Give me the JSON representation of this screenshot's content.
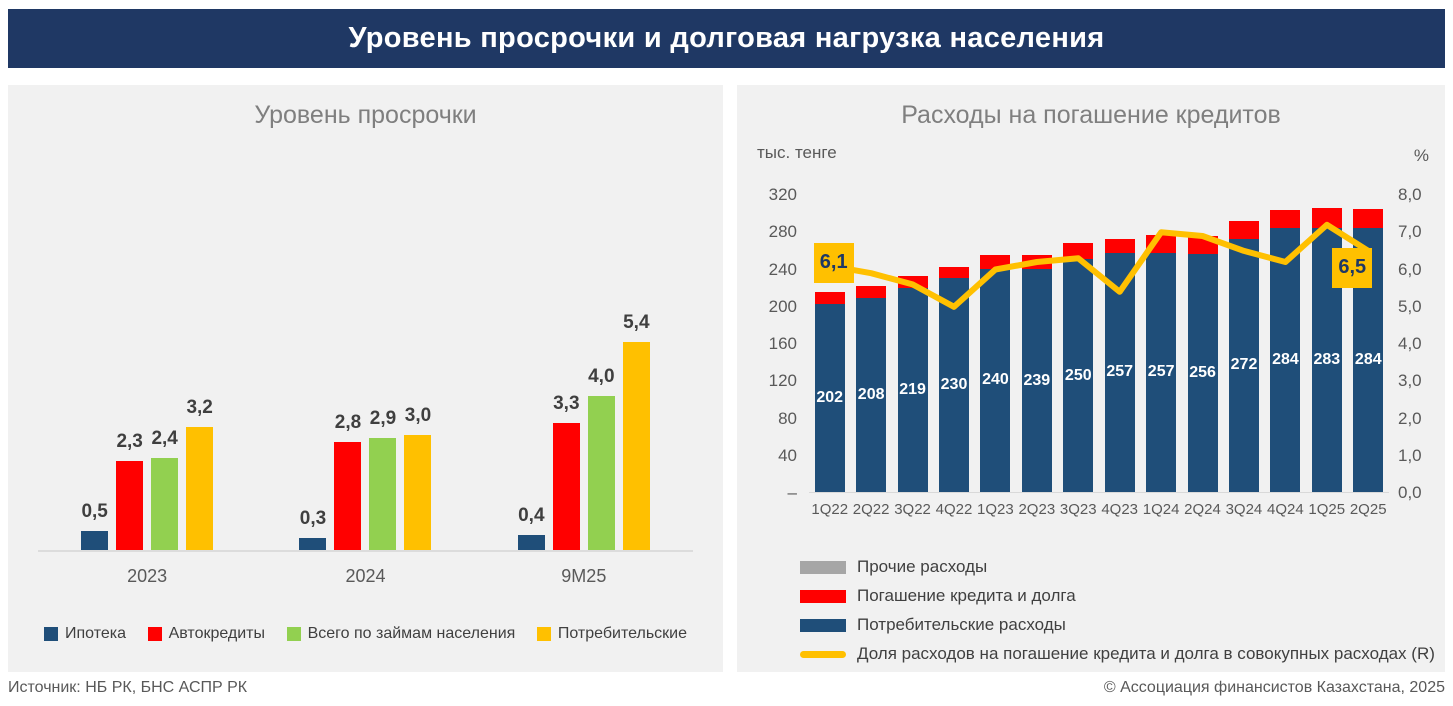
{
  "header": {
    "title": "Уровень просрочки и долговая нагрузка населения"
  },
  "footer": {
    "source": "Источник: НБ РК, БНС АСПР РК",
    "copyright": "© Ассоциация финансистов Казахстана, 2025"
  },
  "colors": {
    "header_bg": "#1F3864",
    "panel_bg": "#F1F1F1",
    "navy_bar": "#1F4E79",
    "red": "#FF0000",
    "green": "#92D050",
    "gold": "#FFC000",
    "gray": "#A6A6A6"
  },
  "chart_data": [
    {
      "type": "bar",
      "title": "Уровень просрочки",
      "categories": [
        "2023",
        "2024",
        "9М25"
      ],
      "series": [
        {
          "name": "Ипотека",
          "color": "#1F4E79",
          "values": [
            0.5,
            0.3,
            0.4
          ]
        },
        {
          "name": "Автокредиты",
          "color": "#FF0000",
          "values": [
            2.3,
            2.8,
            3.3
          ]
        },
        {
          "name": "Всего по займам населения",
          "color": "#92D050",
          "values": [
            2.4,
            2.9,
            4.0
          ]
        },
        {
          "name": "Потребительские",
          "color": "#FFC000",
          "values": [
            3.2,
            3.0,
            5.4
          ]
        }
      ],
      "ylim": [
        0,
        5.4
      ],
      "grid": false,
      "value_axis_visible": false,
      "data_labels": "above bars, comma decimal",
      "legend_position": "bottom"
    },
    {
      "type": "bar-stacked-with-line",
      "title": "Расходы на погашение кредитов",
      "left_axis_unit": "тыс. тенге",
      "right_axis_unit": "%",
      "categories": [
        "1Q22",
        "2Q22",
        "3Q22",
        "4Q22",
        "1Q23",
        "2Q23",
        "3Q23",
        "4Q23",
        "1Q24",
        "2Q24",
        "3Q24",
        "4Q24",
        "1Q25",
        "2Q25"
      ],
      "series": [
        {
          "name": "Потребительские расходы",
          "color": "#1F4E79",
          "values": [
            202,
            208,
            219,
            230,
            240,
            239,
            250,
            257,
            257,
            256,
            272,
            284,
            283,
            284
          ],
          "data_labels": true
        },
        {
          "name": "Погашение кредита и долга",
          "color": "#FF0000",
          "values": [
            13,
            13,
            13,
            12,
            15,
            16,
            17,
            15,
            19,
            19,
            19,
            19,
            22,
            20
          ],
          "estimated": true,
          "data_labels": false
        },
        {
          "name": "Прочие расходы",
          "color": "#A6A6A6",
          "values": [
            0,
            0,
            0,
            0,
            0,
            0,
            0,
            0,
            0,
            0,
            0,
            0,
            0,
            0
          ],
          "estimated": true,
          "data_labels": false
        }
      ],
      "line_series": {
        "name": "Доля расходов на погашение кредита и долга в совокупных расходах (R)",
        "color": "#FFC000",
        "axis": "right",
        "values": [
          6.1,
          5.9,
          5.6,
          5.0,
          6.0,
          6.2,
          6.3,
          5.4,
          7.0,
          6.9,
          6.5,
          6.2,
          7.2,
          6.5
        ],
        "estimated_except_endpoints": true,
        "first_point_label": "6,1",
        "last_point_label": "6,5"
      },
      "left_axis_ticks": [
        "320",
        "280",
        "240",
        "200",
        "160",
        "120",
        "80",
        "40",
        "–"
      ],
      "right_axis_ticks": [
        "8,0",
        "7,0",
        "6,0",
        "5,0",
        "4,0",
        "3,0",
        "2,0",
        "1,0",
        "0,0"
      ],
      "left_ylim": [
        0,
        320
      ],
      "right_ylim": [
        0,
        8
      ],
      "grid": false,
      "legend_position": "bottom-left",
      "legend_order": [
        "Прочие расходы",
        "Погашение кредита и долга",
        "Потребительские расходы",
        "Доля расходов на погашение кредита и долга в совокупных расходах (R)"
      ]
    }
  ]
}
